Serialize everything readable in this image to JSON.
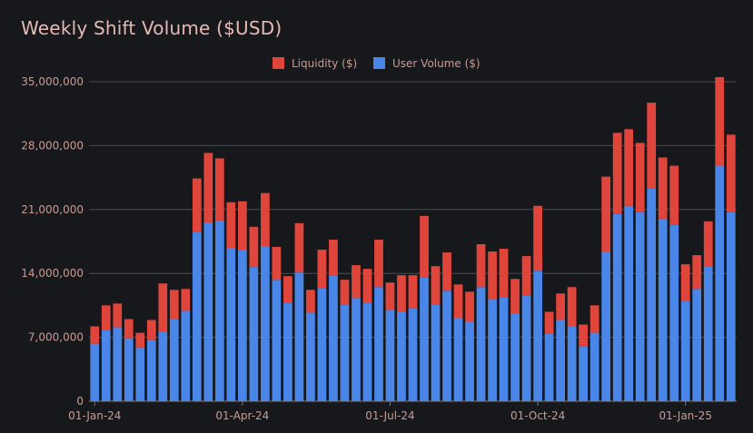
{
  "chart_data": {
    "type": "bar",
    "stacked": true,
    "title": "Weekly Shift Volume ($USD)",
    "xlabel": "",
    "ylabel": "",
    "ylim": [
      0,
      35000000
    ],
    "yticks": [
      0,
      7000000,
      14000000,
      21000000,
      28000000,
      35000000
    ],
    "ytick_labels": [
      "0",
      "7,000,000",
      "14,000,000",
      "21,000,000",
      "28,000,000",
      "35,000,000"
    ],
    "xtick_labels": [
      {
        "index": 0,
        "label": "01-Jan-24"
      },
      {
        "index": 13,
        "label": "01-Apr-24"
      },
      {
        "index": 26,
        "label": "01-Jul-24"
      },
      {
        "index": 39,
        "label": "01-Oct-24"
      },
      {
        "index": 52,
        "label": "01-Jan-25"
      }
    ],
    "legend": {
      "position": "top-center"
    },
    "series": [
      {
        "name": "User Volume ($)",
        "color": "#4a86e8",
        "values": [
          6300000,
          7800000,
          8100000,
          6900000,
          5900000,
          6700000,
          7600000,
          9000000,
          9900000,
          18500000,
          19600000,
          19800000,
          16800000,
          16600000,
          14700000,
          17000000,
          13300000,
          10800000,
          14100000,
          9700000,
          12400000,
          13800000,
          10600000,
          11300000,
          10800000,
          12500000,
          10000000,
          9800000,
          10200000,
          13600000,
          10600000,
          12100000,
          9100000,
          8700000,
          12500000,
          11200000,
          11400000,
          9600000,
          11600000,
          14300000,
          7400000,
          8900000,
          8200000,
          6000000,
          7500000,
          16400000,
          20500000,
          21400000,
          20700000,
          23300000,
          20000000,
          19300000,
          11000000,
          12300000,
          14800000,
          25800000,
          20700000
        ]
      },
      {
        "name": "Liquidity ($)",
        "color": "#e0453b",
        "values": [
          1900000,
          2700000,
          2600000,
          2100000,
          1600000,
          2200000,
          5300000,
          3200000,
          2400000,
          5900000,
          7600000,
          6800000,
          5000000,
          5300000,
          4400000,
          5800000,
          3600000,
          2900000,
          5400000,
          2500000,
          4200000,
          3900000,
          2700000,
          3600000,
          3700000,
          5200000,
          3000000,
          4000000,
          3600000,
          6700000,
          4200000,
          4200000,
          3700000,
          3300000,
          4700000,
          5200000,
          5300000,
          3800000,
          4300000,
          7100000,
          2400000,
          2900000,
          4300000,
          2400000,
          3000000,
          8200000,
          8900000,
          8400000,
          7600000,
          9400000,
          6700000,
          6500000,
          4000000,
          3700000,
          4900000,
          9700000,
          8500000
        ]
      }
    ]
  }
}
